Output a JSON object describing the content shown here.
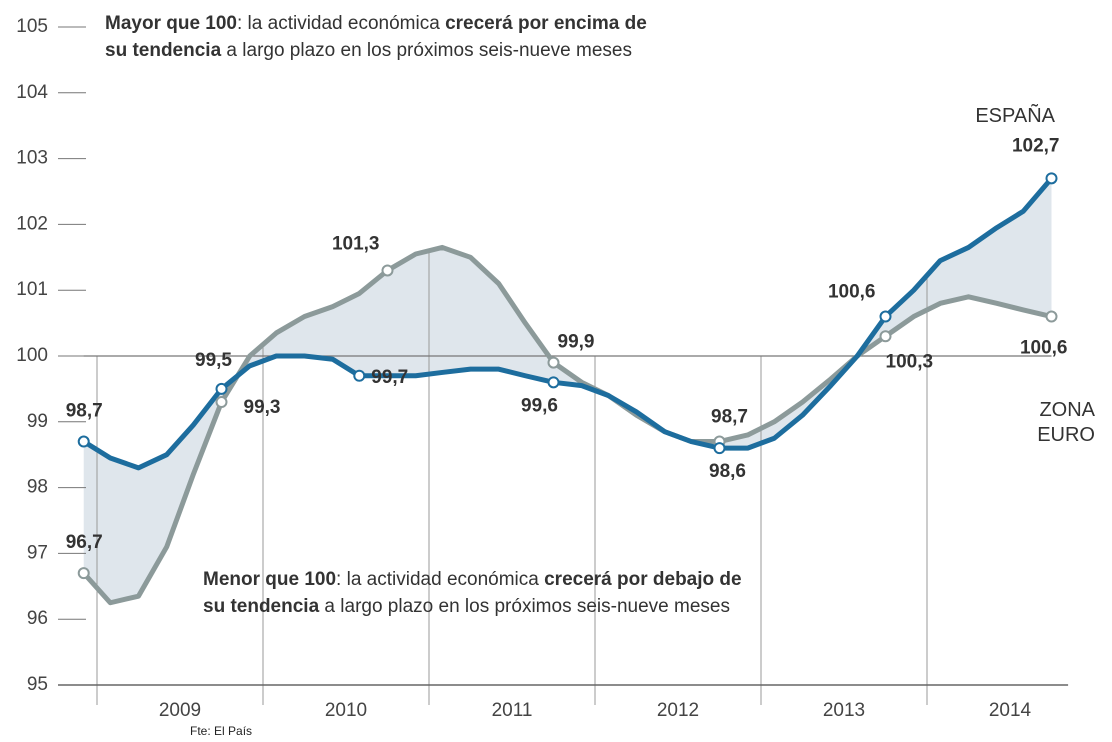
{
  "chart_data": {
    "type": "line",
    "x": [
      2008.92,
      2009.08,
      2009.25,
      2009.42,
      2009.58,
      2009.75,
      2009.92,
      2010.08,
      2010.25,
      2010.42,
      2010.58,
      2010.75,
      2010.92,
      2011.08,
      2011.25,
      2011.42,
      2011.58,
      2011.75,
      2011.92,
      2012.08,
      2012.25,
      2012.42,
      2012.58,
      2012.75,
      2012.92,
      2013.08,
      2013.25,
      2013.42,
      2013.58,
      2013.75,
      2013.92,
      2014.08,
      2014.25,
      2014.42,
      2014.58,
      2014.75
    ],
    "series": [
      {
        "name": "ESPAÑA",
        "color": "#1d6d9e",
        "values": [
          98.7,
          98.45,
          98.3,
          98.5,
          98.95,
          99.5,
          99.85,
          100,
          100,
          99.95,
          99.7,
          99.7,
          99.7,
          99.75,
          99.8,
          99.8,
          99.7,
          99.6,
          99.55,
          99.4,
          99.15,
          98.85,
          98.7,
          98.6,
          98.6,
          98.75,
          99.1,
          99.55,
          100.0,
          100.6,
          101.0,
          101.45,
          101.65,
          101.95,
          102.2,
          102.7
        ],
        "value_labels": [
          "98,7",
          null,
          null,
          null,
          null,
          "99,5",
          null,
          null,
          null,
          null,
          "99,7",
          null,
          null,
          null,
          null,
          null,
          null,
          "99,6",
          null,
          null,
          null,
          null,
          null,
          "98,6",
          null,
          null,
          null,
          null,
          null,
          "100,6",
          null,
          null,
          null,
          null,
          null,
          "102,7"
        ]
      },
      {
        "name": "ZONA EURO",
        "color": "#8c9a9a",
        "values": [
          96.7,
          96.25,
          96.35,
          97.1,
          98.2,
          99.3,
          100.0,
          100.35,
          100.6,
          100.75,
          100.95,
          101.3,
          101.55,
          101.65,
          101.5,
          101.1,
          100.5,
          99.9,
          99.6,
          99.4,
          99.1,
          98.85,
          98.7,
          98.7,
          98.8,
          99.0,
          99.3,
          99.65,
          100.0,
          100.3,
          100.6,
          100.8,
          100.9,
          100.8,
          100.7,
          100.6
        ],
        "value_labels": [
          "96,7",
          null,
          null,
          null,
          null,
          "99,3",
          null,
          null,
          null,
          null,
          null,
          "101,3",
          null,
          null,
          null,
          null,
          null,
          "99,9",
          null,
          null,
          null,
          null,
          null,
          "98,7",
          null,
          null,
          null,
          null,
          null,
          "100,3",
          null,
          null,
          null,
          null,
          null,
          "100,6"
        ]
      }
    ],
    "xlim": [
      2008.9,
      2014.85
    ],
    "xticks": [
      {
        "value": 2009.5,
        "label": "2009"
      },
      {
        "value": 2010.5,
        "label": "2010"
      },
      {
        "value": 2011.5,
        "label": "2011"
      },
      {
        "value": 2012.5,
        "label": "2012"
      },
      {
        "value": 2013.5,
        "label": "2013"
      },
      {
        "value": 2014.5,
        "label": "2014"
      }
    ],
    "year_separators": [
      2009,
      2010,
      2011,
      2012,
      2013,
      2014
    ],
    "ylim": [
      95,
      105
    ],
    "yticks": [
      95,
      96,
      97,
      98,
      99,
      100,
      101,
      102,
      103,
      104,
      105
    ],
    "reference_line": 100,
    "annotations": [
      {
        "parts": [
          {
            "text": "Mayor que 100",
            "bold": true
          },
          {
            "text": ": la actividad económica ",
            "bold": false
          },
          {
            "text": "crecerá por encima de su tendencia",
            "bold": true
          },
          {
            "text": " a largo plazo en los próximos seis-nueve meses",
            "bold": false
          }
        ]
      },
      {
        "parts": [
          {
            "text": "Menor que 100",
            "bold": true
          },
          {
            "text": ": la actividad económica ",
            "bold": false
          },
          {
            "text": "crecerá por debajo de su tendencia",
            "bold": true
          },
          {
            "text": " a largo plazo en los próximos seis-nueve meses",
            "bold": false
          }
        ]
      }
    ],
    "source": "Fte: El País"
  }
}
